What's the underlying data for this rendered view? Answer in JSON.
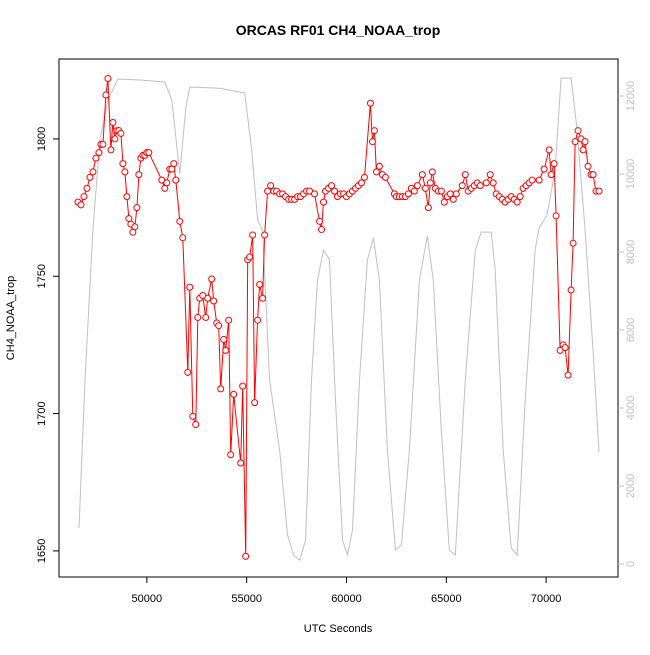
{
  "chart_data": {
    "type": "line",
    "title": "ORCAS RF01 CH4_NOAA_trop",
    "x_label": "UTC Seconds",
    "y_label": "CH4_NOAA_trop",
    "xlim": [
      45600,
      73600
    ],
    "ylim": [
      1640.5,
      1829.1
    ],
    "y2lim": [
      -333,
      12949
    ],
    "xticks": [
      50000,
      55000,
      60000,
      65000,
      70000
    ],
    "yticks": [
      1650,
      1700,
      1750,
      1800
    ],
    "y2ticks": [
      0,
      2000,
      4000,
      6000,
      8000,
      10000,
      12000
    ],
    "series": [
      {
        "color": "#ff0000",
        "markers": true,
        "x": [
          46550,
          46700,
          46850,
          47000,
          47150,
          47300,
          47450,
          47600,
          47700,
          47800,
          47950,
          48050,
          48200,
          48300,
          48400,
          48500,
          48600,
          48700,
          48800,
          48900,
          49000,
          49100,
          49200,
          49300,
          49400,
          49500,
          49600,
          49700,
          49800,
          49900,
          50000,
          50100,
          50750,
          50900,
          51000,
          51150,
          51250,
          51350,
          51450,
          51650,
          51800,
          52050,
          52150,
          52300,
          52450,
          52550,
          52650,
          52800,
          52950,
          53050,
          53250,
          53350,
          53500,
          53600,
          53700,
          53850,
          53950,
          54100,
          54200,
          54350,
          54700,
          54800,
          54950,
          55050,
          55150,
          55300,
          55400,
          55550,
          55650,
          55800,
          55900,
          56050,
          56200,
          56350,
          56500,
          56650,
          56800,
          56950,
          57100,
          57250,
          57400,
          57550,
          57700,
          57850,
          58000,
          58150,
          58400,
          58650,
          58750,
          58850,
          58950,
          59100,
          59250,
          59400,
          59550,
          59700,
          59850,
          60000,
          60150,
          60300,
          60450,
          60600,
          60750,
          60900,
          61200,
          61300,
          61400,
          61500,
          61650,
          61800,
          61950,
          62400,
          62500,
          62650,
          62800,
          62950,
          63100,
          63250,
          63400,
          63550,
          63800,
          63950,
          64100,
          64200,
          64300,
          64450,
          64600,
          64750,
          64900,
          65050,
          65200,
          65350,
          65500,
          65800,
          65950,
          66100,
          66250,
          66400,
          66550,
          66700,
          67000,
          67200,
          67350,
          67500,
          67650,
          67800,
          67950,
          68100,
          68250,
          68400,
          68550,
          68700,
          68850,
          69000,
          69150,
          69300,
          69650,
          69900,
          70150,
          70250,
          70400,
          70500,
          70700,
          70850,
          70950,
          71100,
          71250,
          71350,
          71450,
          71600,
          71750,
          71850,
          71950,
          72100,
          72250,
          72350,
          72500,
          72650
        ],
        "values": [
          1777,
          1776,
          1779,
          1782,
          1786,
          1788,
          1793,
          1795,
          1798,
          1798,
          1816,
          1822,
          1796,
          1806,
          1800,
          1803,
          1803,
          1802,
          1791,
          1788,
          1779,
          1771,
          1769,
          1766,
          1768,
          1775,
          1787,
          1793,
          1794,
          1794,
          1795,
          1795,
          1785,
          1782,
          1784,
          1789,
          1789,
          1791,
          1785,
          1770,
          1764,
          1715,
          1746,
          1699,
          1696,
          1735,
          1742,
          1743,
          1735,
          1742,
          1749,
          1741,
          1733,
          1732,
          1709,
          1727,
          1723,
          1734,
          1685,
          1707,
          1682,
          1710,
          1648,
          1756,
          1757,
          1765,
          1704,
          1734,
          1747,
          1742,
          1765,
          1781,
          1783,
          1781,
          1781,
          1780,
          1780,
          1779,
          1778,
          1778,
          1778,
          1779,
          1779,
          1780,
          1781,
          1781,
          1780,
          1770,
          1767,
          1777,
          1781,
          1782,
          1783,
          1781,
          1779,
          1780,
          1780,
          1779,
          1780,
          1781,
          1782,
          1783,
          1784,
          1786,
          1813,
          1799,
          1803,
          1788,
          1790,
          1787,
          1786,
          1780,
          1779,
          1779,
          1779,
          1779,
          1780,
          1782,
          1781,
          1783,
          1787,
          1782,
          1775,
          1784,
          1788,
          1782,
          1781,
          1781,
          1777,
          1779,
          1780,
          1778,
          1780,
          1783,
          1787,
          1781,
          1782,
          1783,
          1784,
          1783,
          1784,
          1787,
          1784,
          1780,
          1779,
          1778,
          1777,
          1778,
          1779,
          1778,
          1777,
          1779,
          1782,
          1783,
          1784,
          1785,
          1785,
          1789,
          1796,
          1787,
          1791,
          1772,
          1723,
          1725,
          1724,
          1714,
          1745,
          1762,
          1799,
          1803,
          1800,
          1796,
          1799,
          1790,
          1787,
          1787,
          1781,
          1781
        ]
      },
      {
        "color": "#c0c0c0",
        "axis": "y2",
        "x": [
          46600,
          46900,
          47300,
          47650,
          48050,
          48550,
          49650,
          50900,
          51250,
          51650,
          51950,
          52150,
          53650,
          54900,
          55250,
          55550,
          55800,
          56150,
          56650,
          57050,
          57350,
          57650,
          57950,
          58250,
          58550,
          58850,
          59150,
          59450,
          59800,
          60050,
          60300,
          60650,
          61050,
          61350,
          61650,
          62050,
          62450,
          62750,
          63150,
          63650,
          64050,
          64350,
          64750,
          65150,
          65450,
          65950,
          66450,
          66750,
          67250,
          67450,
          67850,
          68250,
          68550,
          68950,
          69450,
          69650,
          70050,
          70450,
          70750,
          71250,
          71550,
          71950,
          72350,
          72650
        ],
        "values": [
          923,
          4718,
          8560,
          10870,
          11900,
          12435,
          12410,
          12360,
          11900,
          10000,
          11700,
          12230,
          12200,
          12080,
          10620,
          8820,
          8560,
          4720,
          2920,
          740,
          230,
          100,
          615,
          4720,
          7280,
          8050,
          7800,
          4200,
          615,
          230,
          870,
          4720,
          7800,
          8360,
          7280,
          2920,
          360,
          490,
          2920,
          7280,
          8410,
          7280,
          3440,
          360,
          230,
          4720,
          8050,
          8510,
          8510,
          7540,
          2920,
          410,
          230,
          4200,
          8050,
          8620,
          8950,
          10100,
          12460,
          12460,
          11130,
          8560,
          5490,
          2870
        ]
      }
    ]
  }
}
